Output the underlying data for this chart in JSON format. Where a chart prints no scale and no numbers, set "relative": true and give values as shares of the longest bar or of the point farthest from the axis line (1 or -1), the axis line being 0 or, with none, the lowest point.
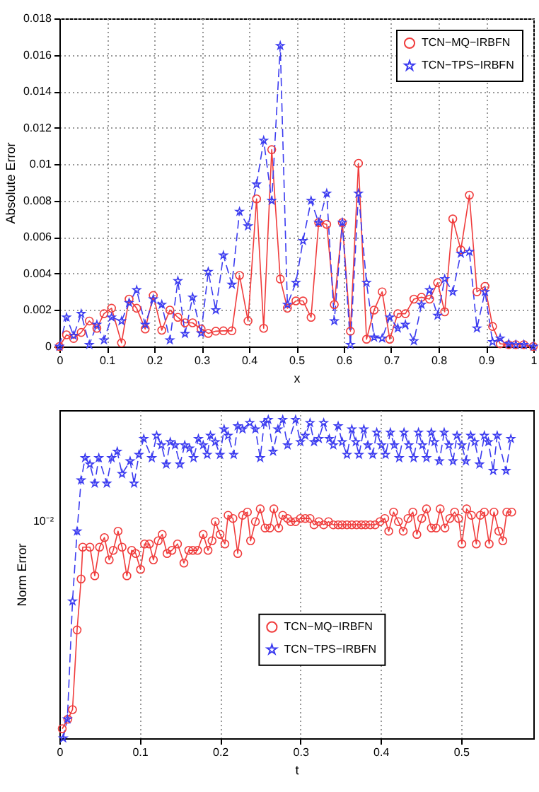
{
  "chart_data": [
    {
      "type": "line",
      "xlabel": "x",
      "ylabel": "Absolute Error",
      "x": [
        0,
        0.015,
        0.03,
        0.046,
        0.063,
        0.079,
        0.094,
        0.11,
        0.131,
        0.147,
        0.163,
        0.181,
        0.198,
        0.216,
        0.233,
        0.25,
        0.265,
        0.281,
        0.299,
        0.314,
        0.33,
        0.346,
        0.364,
        0.38,
        0.398,
        0.416,
        0.431,
        0.448,
        0.466,
        0.481,
        0.499,
        0.514,
        0.531,
        0.547,
        0.564,
        0.58,
        0.597,
        0.614,
        0.631,
        0.648,
        0.664,
        0.681,
        0.697,
        0.714,
        0.73,
        0.748,
        0.764,
        0.781,
        0.798,
        0.813,
        0.83,
        0.847,
        0.865,
        0.881,
        0.898,
        0.914,
        0.93,
        0.948,
        0.963,
        0.98,
        1.0
      ],
      "series": [
        {
          "name": "TCN−MQ−IRBFN",
          "color": "#f03c3c",
          "marker": "circle",
          "line_style": "solid",
          "values": [
            0,
            0.00064,
            0.00044,
            0.00077,
            0.0014,
            0.001,
            0.0018,
            0.0021,
            0.0002,
            0.0026,
            0.0021,
            0.00096,
            0.0028,
            0.00089,
            0.002,
            0.0016,
            0.0013,
            0.0013,
            0.00096,
            0.00072,
            0.00084,
            0.00086,
            0.00086,
            0.0039,
            0.0014,
            0.0081,
            0.001,
            0.0108,
            0.0037,
            0.0021,
            0.0025,
            0.0025,
            0.0016,
            0.0068,
            0.0067,
            0.0023,
            0.0068,
            0.00084,
            0.01005,
            0.0004,
            0.002,
            0.003,
            0.0004,
            0.0018,
            0.0018,
            0.0026,
            0.0027,
            0.0026,
            0.0035,
            0.0019,
            0.007,
            0.0053,
            0.0083,
            0.003,
            0.0033,
            0.0011,
            0.00015,
            0.0001,
            0.0001,
            0.0001,
            0
          ]
        },
        {
          "name": "TCN−TPS−IRBFN",
          "color": "#3c3cf0",
          "marker": "star",
          "line_style": "dashed",
          "values": [
            0,
            0.0016,
            0.0006,
            0.0018,
            0.0001,
            0.0012,
            0.00035,
            0.0016,
            0.0014,
            0.0024,
            0.0031,
            0.0012,
            0.0026,
            0.0023,
            0.00035,
            0.0036,
            0.0007,
            0.0027,
            0.00074,
            0.0041,
            0.002,
            0.005,
            0.0034,
            0.0074,
            0.0066,
            0.0089,
            0.0113,
            0.008,
            0.0165,
            0.0023,
            0.0035,
            0.0058,
            0.008,
            0.0068,
            0.0084,
            0.0014,
            0.0068,
            0.0001,
            0.0084,
            0.0035,
            0.0005,
            0.00045,
            0.0016,
            0.001,
            0.0012,
            0.0003,
            0.0023,
            0.0031,
            0.0017,
            0.0037,
            0.003,
            0.0051,
            0.0052,
            0.001,
            0.003,
            0.00025,
            0.00045,
            0.00015,
            0.0001,
            0.0001,
            0
          ]
        }
      ],
      "xlim": [
        0,
        1
      ],
      "xticks": [
        0,
        0.1,
        0.2,
        0.3,
        0.4,
        0.5,
        0.6,
        0.7,
        0.8,
        0.9,
        1
      ],
      "ylim": [
        0,
        0.018
      ],
      "yticks": [
        0,
        0.002,
        0.004,
        0.006,
        0.008,
        0.01,
        0.012,
        0.014,
        0.016,
        0.018
      ],
      "grid": true,
      "legend": "top right"
    },
    {
      "type": "line",
      "xlabel": "t",
      "ylabel": "Norm Error",
      "relative": true,
      "annotations": [
        "10⁻²"
      ],
      "series": [
        {
          "name": "TCN−MQ−IRBFN",
          "color": "#f03c3c",
          "marker": "circle",
          "line_style": "solid",
          "x": [
            0.0035,
            0.0105,
            0.0163,
            0.022,
            0.027,
            0.029,
            0.038,
            0.044,
            0.05,
            0.056,
            0.062,
            0.067,
            0.073,
            0.078,
            0.084,
            0.09,
            0.095,
            0.101,
            0.106,
            0.112,
            0.117,
            0.123,
            0.128,
            0.134,
            0.14,
            0.147,
            0.155,
            0.161,
            0.166,
            0.172,
            0.179,
            0.185,
            0.19,
            0.194,
            0.2,
            0.206,
            0.21,
            0.216,
            0.222,
            0.228,
            0.234,
            0.238,
            0.244,
            0.25,
            0.256,
            0.262,
            0.267,
            0.273,
            0.278,
            0.284,
            0.288,
            0.294,
            0.3,
            0.306,
            0.312,
            0.317,
            0.323,
            0.329,
            0.335,
            0.341,
            0.347,
            0.352,
            0.358,
            0.364,
            0.37,
            0.376,
            0.381,
            0.387,
            0.393,
            0.399,
            0.405,
            0.41,
            0.416,
            0.422,
            0.428,
            0.434,
            0.44,
            0.445,
            0.451,
            0.457,
            0.463,
            0.469,
            0.474,
            0.48,
            0.486,
            0.492,
            0.497,
            0.501,
            0.507,
            0.513,
            0.519,
            0.524,
            0.529,
            0.535,
            0.541,
            0.547,
            0.552,
            0.557,
            0.563
          ],
          "values": [
            0.03,
            0.06,
            0.09,
            0.34,
            0.5,
            0.6,
            0.6,
            0.51,
            0.6,
            0.63,
            0.56,
            0.59,
            0.65,
            0.6,
            0.51,
            0.59,
            0.58,
            0.53,
            0.61,
            0.61,
            0.56,
            0.62,
            0.64,
            0.58,
            0.59,
            0.61,
            0.55,
            0.59,
            0.59,
            0.59,
            0.64,
            0.59,
            0.62,
            0.68,
            0.64,
            0.61,
            0.7,
            0.69,
            0.58,
            0.7,
            0.71,
            0.62,
            0.68,
            0.72,
            0.66,
            0.66,
            0.72,
            0.66,
            0.7,
            0.69,
            0.68,
            0.68,
            0.69,
            0.69,
            0.69,
            0.67,
            0.68,
            0.67,
            0.68,
            0.67,
            0.67,
            0.67,
            0.67,
            0.67,
            0.67,
            0.67,
            0.67,
            0.67,
            0.67,
            0.68,
            0.69,
            0.65,
            0.71,
            0.68,
            0.65,
            0.69,
            0.71,
            0.64,
            0.69,
            0.72,
            0.66,
            0.66,
            0.72,
            0.66,
            0.69,
            0.71,
            0.69,
            0.61,
            0.72,
            0.7,
            0.61,
            0.7,
            0.71,
            0.61,
            0.71,
            0.65,
            0.62,
            0.71,
            0.71
          ]
        },
        {
          "name": "TCN−TPS−IRBFN",
          "color": "#3c3cf0",
          "marker": "star",
          "line_style": "dashed",
          "x": [
            0.0047,
            0.0099,
            0.0163,
            0.022,
            0.027,
            0.032,
            0.038,
            0.044,
            0.049,
            0.059,
            0.065,
            0.072,
            0.078,
            0.088,
            0.093,
            0.099,
            0.105,
            0.115,
            0.121,
            0.127,
            0.133,
            0.138,
            0.144,
            0.15,
            0.156,
            0.162,
            0.167,
            0.173,
            0.179,
            0.184,
            0.188,
            0.194,
            0.2,
            0.205,
            0.21,
            0.217,
            0.222,
            0.228,
            0.237,
            0.244,
            0.25,
            0.255,
            0.26,
            0.266,
            0.272,
            0.278,
            0.284,
            0.294,
            0.3,
            0.306,
            0.312,
            0.317,
            0.323,
            0.329,
            0.336,
            0.341,
            0.347,
            0.352,
            0.358,
            0.364,
            0.369,
            0.373,
            0.379,
            0.384,
            0.39,
            0.395,
            0.401,
            0.406,
            0.412,
            0.417,
            0.423,
            0.429,
            0.435,
            0.441,
            0.447,
            0.452,
            0.457,
            0.463,
            0.467,
            0.473,
            0.479,
            0.485,
            0.49,
            0.495,
            0.501,
            0.506,
            0.512,
            0.517,
            0.523,
            0.529,
            0.534,
            0.54,
            0.545,
            0.556,
            0.562
          ],
          "values": [
            0,
            0.06,
            0.43,
            0.65,
            0.81,
            0.88,
            0.86,
            0.8,
            0.88,
            0.8,
            0.88,
            0.9,
            0.83,
            0.87,
            0.8,
            0.89,
            0.94,
            0.88,
            0.95,
            0.92,
            0.86,
            0.93,
            0.92,
            0.86,
            0.92,
            0.91,
            0.88,
            0.94,
            0.92,
            0.89,
            0.95,
            0.93,
            0.89,
            0.97,
            0.95,
            0.89,
            0.98,
            0.97,
            0.99,
            0.97,
            0.88,
            0.99,
            1,
            0.9,
            0.97,
            1,
            0.92,
            1,
            0.93,
            0.95,
            0.99,
            0.93,
            0.94,
            0.99,
            0.94,
            0.92,
            0.98,
            0.93,
            0.89,
            0.97,
            0.93,
            0.89,
            0.97,
            0.92,
            0.89,
            0.96,
            0.92,
            0.89,
            0.96,
            0.92,
            0.88,
            0.96,
            0.92,
            0.88,
            0.96,
            0.92,
            0.88,
            0.96,
            0.93,
            0.87,
            0.96,
            0.92,
            0.87,
            0.95,
            0.92,
            0.87,
            0.95,
            0.93,
            0.86,
            0.95,
            0.93,
            0.84,
            0.95,
            0.84,
            0.94
          ]
        }
      ],
      "xlim": [
        0,
        0.59
      ],
      "xticks": [
        0,
        0.1,
        0.2,
        0.3,
        0.4,
        0.5
      ],
      "grid": "x",
      "legend": "bottom"
    }
  ]
}
